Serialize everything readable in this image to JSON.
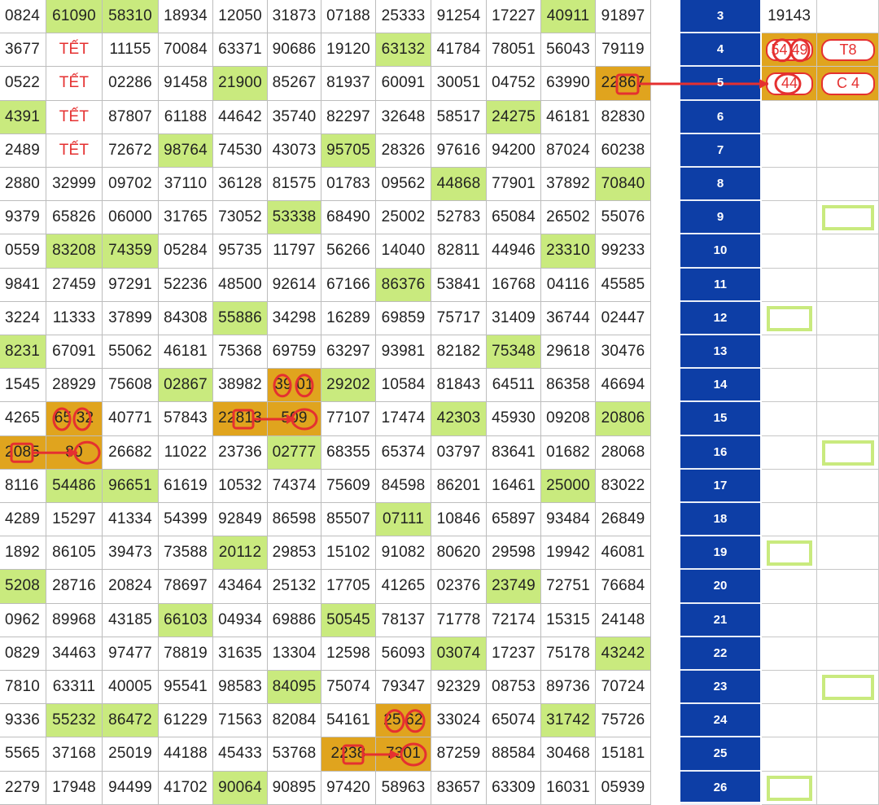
{
  "rows": [
    {
      "index": "3",
      "cells": [
        "0824",
        "61090",
        "58310",
        "18934",
        "12050",
        "31873",
        "07188",
        "25333",
        "91254",
        "17227",
        "40911",
        "91897"
      ],
      "green": [
        1,
        2,
        10
      ],
      "right": [
        "19143",
        ""
      ]
    },
    {
      "index": "4",
      "cells": [
        "3677",
        "TẾT",
        "11155",
        "70084",
        "63371",
        "90686",
        "19120",
        "63132",
        "41784",
        "78051",
        "56043",
        "79119"
      ],
      "green": [
        7
      ],
      "right": [
        "54 49",
        "T8"
      ]
    },
    {
      "index": "5",
      "cells": [
        "0522",
        "TẾT",
        "02286",
        "91458",
        "21900",
        "85267",
        "81937",
        "60091",
        "30051",
        "04752",
        "63990",
        "22867"
      ],
      "green": [
        4
      ],
      "right": [
        "44",
        "C 4"
      ]
    },
    {
      "index": "6",
      "cells": [
        "4391",
        "TẾT",
        "87807",
        "61188",
        "44642",
        "35740",
        "82297",
        "32648",
        "58517",
        "24275",
        "46181",
        "82830"
      ],
      "green": [
        0,
        9
      ],
      "right": [
        "",
        ""
      ]
    },
    {
      "index": "7",
      "cells": [
        "2489",
        "TẾT",
        "72672",
        "98764",
        "74530",
        "43073",
        "95705",
        "28326",
        "97616",
        "94200",
        "87024",
        "60238"
      ],
      "green": [
        3,
        6
      ],
      "right": [
        "",
        ""
      ]
    },
    {
      "index": "8",
      "cells": [
        "2880",
        "32999",
        "09702",
        "37110",
        "36128",
        "81575",
        "01783",
        "09562",
        "44868",
        "77901",
        "37892",
        "70840"
      ],
      "green": [
        8,
        11
      ],
      "right": [
        "",
        ""
      ]
    },
    {
      "index": "9",
      "cells": [
        "9379",
        "65826",
        "06000",
        "31765",
        "73052",
        "53338",
        "68490",
        "25002",
        "52783",
        "65084",
        "26502",
        "55076"
      ],
      "green": [
        5
      ],
      "right": [
        "",
        ""
      ]
    },
    {
      "index": "10",
      "cells": [
        "0559",
        "83208",
        "74359",
        "05284",
        "95735",
        "11797",
        "56266",
        "14040",
        "82811",
        "44946",
        "23310",
        "99233"
      ],
      "green": [
        1,
        2,
        10
      ],
      "right": [
        "",
        ""
      ]
    },
    {
      "index": "11",
      "cells": [
        "9841",
        "27459",
        "97291",
        "52236",
        "48500",
        "92614",
        "67166",
        "86376",
        "53841",
        "16768",
        "04116",
        "45585"
      ],
      "green": [
        7
      ],
      "right": [
        "",
        ""
      ]
    },
    {
      "index": "12",
      "cells": [
        "3224",
        "11333",
        "37899",
        "84308",
        "55886",
        "34298",
        "16289",
        "69859",
        "75717",
        "31409",
        "36744",
        "02447"
      ],
      "green": [
        4
      ],
      "right": [
        "",
        ""
      ]
    },
    {
      "index": "13",
      "cells": [
        "8231",
        "67091",
        "55062",
        "46181",
        "75368",
        "69759",
        "63297",
        "93981",
        "82182",
        "75348",
        "29618",
        "30476"
      ],
      "green": [
        0,
        9
      ],
      "right": [
        "",
        ""
      ]
    },
    {
      "index": "14",
      "cells": [
        "1545",
        "28929",
        "75608",
        "02867",
        "38982",
        "39 01",
        "29202",
        "10584",
        "81843",
        "64511",
        "86358",
        "46694"
      ],
      "green": [
        3,
        6
      ],
      "right": [
        "",
        ""
      ]
    },
    {
      "index": "15",
      "cells": [
        "4265",
        "65 32",
        "40771",
        "57843",
        "22813",
        "509",
        "77107",
        "17474",
        "42303",
        "45930",
        "09208",
        "20806"
      ],
      "green": [
        8,
        11
      ],
      "right": [
        "",
        ""
      ]
    },
    {
      "index": "16",
      "cells": [
        "2085",
        "80",
        "26682",
        "11022",
        "23736",
        "02777",
        "68355",
        "65374",
        "03797",
        "83641",
        "01682",
        "28068"
      ],
      "green": [
        5
      ],
      "right": [
        "",
        ""
      ]
    },
    {
      "index": "17",
      "cells": [
        "8116",
        "54486",
        "96651",
        "61619",
        "10532",
        "74374",
        "75609",
        "84598",
        "86201",
        "16461",
        "25000",
        "83022"
      ],
      "green": [
        1,
        2,
        10
      ],
      "right": [
        "",
        ""
      ]
    },
    {
      "index": "18",
      "cells": [
        "4289",
        "15297",
        "41334",
        "54399",
        "92849",
        "86598",
        "85507",
        "07111",
        "10846",
        "65897",
        "93484",
        "26849"
      ],
      "green": [
        7
      ],
      "right": [
        "",
        ""
      ]
    },
    {
      "index": "19",
      "cells": [
        "1892",
        "86105",
        "39473",
        "73588",
        "20112",
        "29853",
        "15102",
        "91082",
        "80620",
        "29598",
        "19942",
        "46081"
      ],
      "green": [
        4
      ],
      "right": [
        "",
        ""
      ]
    },
    {
      "index": "20",
      "cells": [
        "5208",
        "28716",
        "20824",
        "78697",
        "43464",
        "25132",
        "17705",
        "41265",
        "02376",
        "23749",
        "72751",
        "76684"
      ],
      "green": [
        0,
        9
      ],
      "right": [
        "",
        ""
      ]
    },
    {
      "index": "21",
      "cells": [
        "0962",
        "89968",
        "43185",
        "66103",
        "04934",
        "69886",
        "50545",
        "78137",
        "71778",
        "72174",
        "15315",
        "24148"
      ],
      "green": [
        3,
        6
      ],
      "right": [
        "",
        ""
      ]
    },
    {
      "index": "22",
      "cells": [
        "0829",
        "34463",
        "97477",
        "78819",
        "31635",
        "13304",
        "12598",
        "56093",
        "03074",
        "17237",
        "75178",
        "43242"
      ],
      "green": [
        8,
        11
      ],
      "right": [
        "",
        ""
      ]
    },
    {
      "index": "23",
      "cells": [
        "7810",
        "63311",
        "40005",
        "95541",
        "98583",
        "84095",
        "75074",
        "79347",
        "92329",
        "08753",
        "89736",
        "70724"
      ],
      "green": [
        5
      ],
      "right": [
        "",
        ""
      ]
    },
    {
      "index": "24",
      "cells": [
        "9336",
        "55232",
        "86472",
        "61229",
        "71563",
        "82084",
        "54161",
        "25 62",
        "33024",
        "65074",
        "31742",
        "75726"
      ],
      "green": [
        1,
        2,
        10
      ],
      "right": [
        "",
        ""
      ]
    },
    {
      "index": "25",
      "cells": [
        "5565",
        "37168",
        "25019",
        "44188",
        "45433",
        "53768",
        "2238",
        "7301",
        "87259",
        "88584",
        "30468",
        "15181"
      ],
      "green": [],
      "right": [
        "",
        ""
      ]
    },
    {
      "index": "26",
      "cells": [
        "2279",
        "17948",
        "94499",
        "41702",
        "90064",
        "90895",
        "97420",
        "58963",
        "83657",
        "63309",
        "16031",
        "05939"
      ],
      "green": [
        4
      ],
      "right": [
        "",
        ""
      ]
    }
  ],
  "orange_cells": [
    {
      "row": 2,
      "col": 11
    },
    {
      "row": 11,
      "col": 5
    },
    {
      "row": 12,
      "col": 1
    },
    {
      "row": 12,
      "col": 4
    },
    {
      "row": 12,
      "col": 5
    },
    {
      "row": 13,
      "col": 0
    },
    {
      "row": 13,
      "col": 1
    },
    {
      "row": 21,
      "col": 7
    },
    {
      "row": 22,
      "col": 6
    },
    {
      "row": 22,
      "col": 7
    }
  ],
  "right_orange": [
    {
      "row": 1,
      "col": 0
    },
    {
      "row": 1,
      "col": 1
    },
    {
      "row": 2,
      "col": 0
    },
    {
      "row": 2,
      "col": 1
    }
  ],
  "empty_slots": [
    {
      "row": 6,
      "col": 1
    },
    {
      "row": 9,
      "col": 0
    },
    {
      "row": 13,
      "col": 1
    },
    {
      "row": 16,
      "col": 0
    },
    {
      "row": 20,
      "col": 1
    },
    {
      "row": 23,
      "col": 0
    }
  ],
  "colors": {
    "green": "#c9ea7e",
    "orange": "#e0a41e",
    "index_bg": "#0d3ea6",
    "mark_red": "#e53030"
  },
  "icons": [
    "marker-circle-icon",
    "marker-square-icon",
    "arrow-right-icon"
  ]
}
